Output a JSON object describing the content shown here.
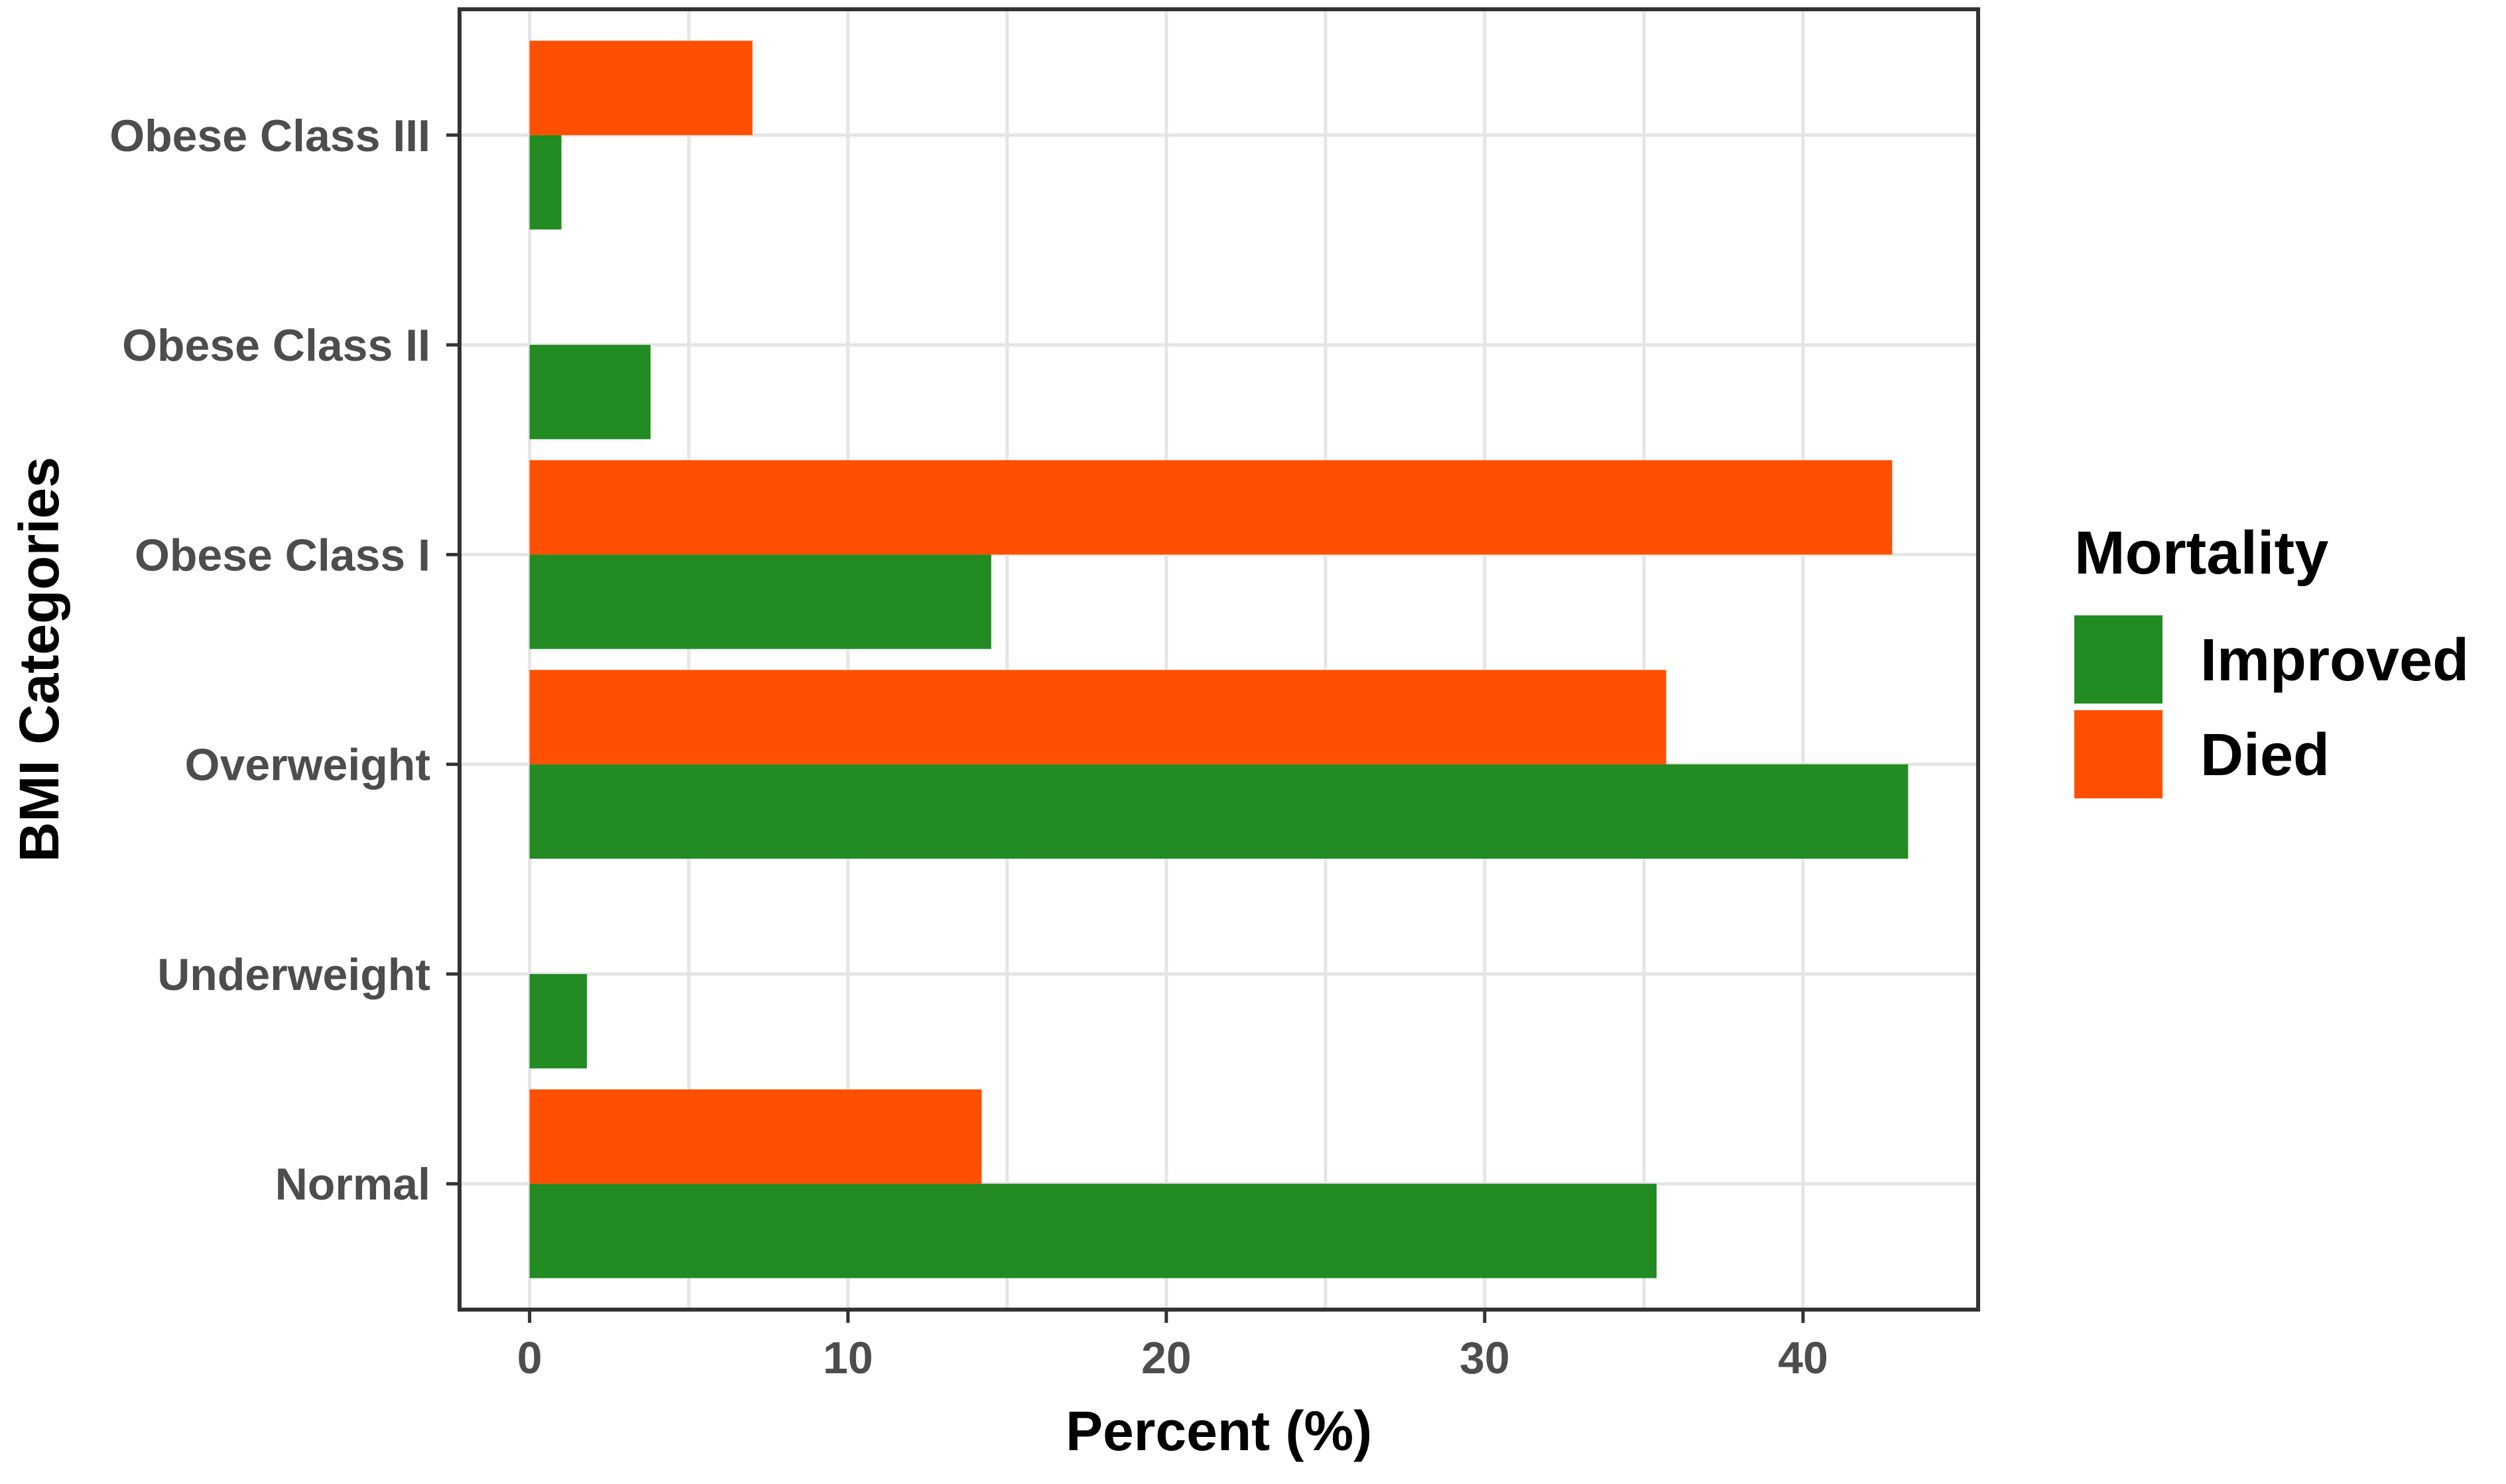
{
  "chart_data": {
    "type": "bar",
    "orientation": "horizontal",
    "categories": [
      "Normal",
      "Underweight",
      "Overweight",
      "Obese Class I",
      "Obese Class II",
      "Obese Class III"
    ],
    "series": [
      {
        "name": "Improved",
        "color": "#228B22",
        "values": [
          35.4,
          1.8,
          43.3,
          14.5,
          3.8,
          1.0
        ]
      },
      {
        "name": "Died",
        "color": "#FF4F00",
        "values": [
          14.2,
          0,
          35.7,
          42.8,
          0,
          7.0
        ]
      }
    ],
    "xlabel": "Percent (%)",
    "ylabel": "BMI Categories",
    "xlim": [
      -2.2,
      45.5
    ],
    "xticks": [
      0,
      10,
      20,
      30,
      40
    ],
    "grid": true,
    "legend": {
      "title": "Mortality",
      "placement": "right",
      "entries": [
        "Improved",
        "Died"
      ]
    }
  }
}
